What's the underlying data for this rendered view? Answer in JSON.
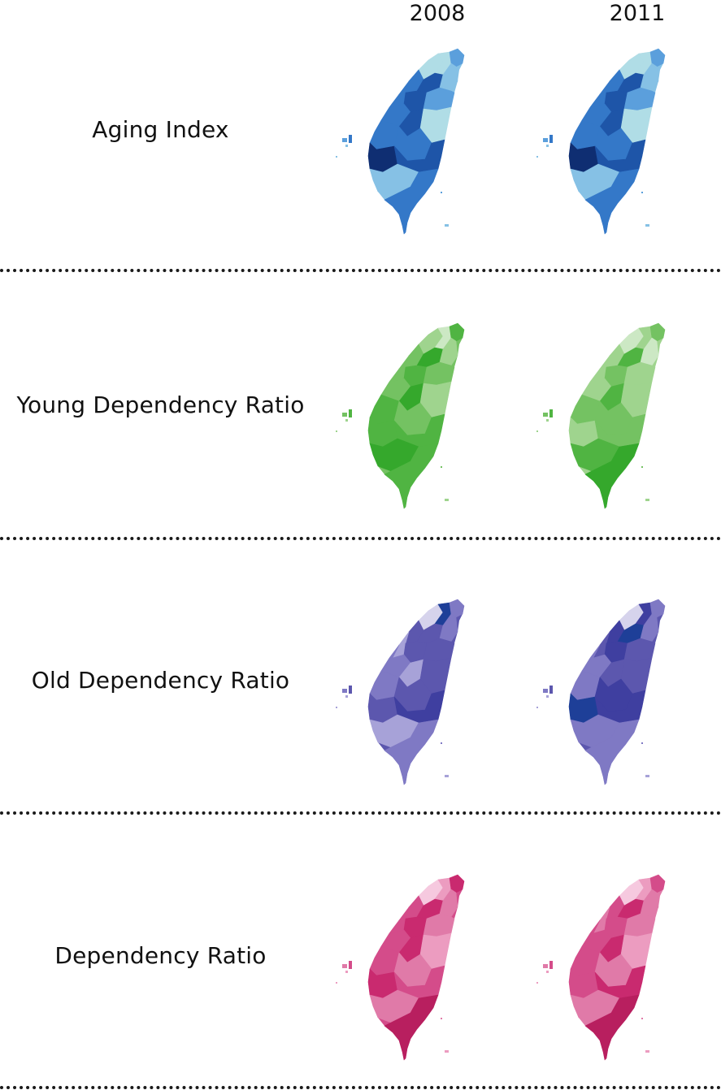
{
  "columns": [
    {
      "year_label": "2008"
    },
    {
      "year_label": "2011"
    }
  ],
  "rows": [
    {
      "label": "Aging Index",
      "palette": [
        "#b0dde6",
        "#86c1e5",
        "#5b9fdc",
        "#3478c8",
        "#1e55a8",
        "#0f2e72"
      ],
      "maps": [
        {
          "base": 1,
          "regions": [
            0,
            0,
            2,
            3,
            4,
            1,
            3,
            4,
            2,
            3,
            4,
            0,
            3,
            3,
            5,
            4,
            1,
            3
          ]
        },
        {
          "base": 1,
          "regions": [
            0,
            0,
            2,
            3,
            4,
            1,
            3,
            4,
            2,
            3,
            4,
            0,
            3,
            3,
            5,
            4,
            1,
            3
          ]
        }
      ]
    },
    {
      "label": "Young Dependency Ratio",
      "palette": [
        "#cce8c4",
        "#9fd48e",
        "#74c262",
        "#50b442",
        "#35a82c",
        "#1f8f1d"
      ],
      "maps": [
        {
          "base": 2,
          "regions": [
            1,
            0,
            3,
            2,
            4,
            1,
            2,
            3,
            2,
            2,
            4,
            1,
            3,
            2,
            3,
            3,
            4,
            3
          ]
        },
        {
          "base": 1,
          "regions": [
            0,
            1,
            2,
            1,
            3,
            0,
            1,
            2,
            1,
            1,
            3,
            1,
            2,
            2,
            1,
            2,
            3,
            4
          ]
        }
      ]
    },
    {
      "label": "Old Dependency Ratio",
      "palette": [
        "#d6d3ec",
        "#a7a2d8",
        "#7f79c4",
        "#5c57ae",
        "#3f3fa0",
        "#1e3f98"
      ],
      "maps": [
        {
          "base": 3,
          "regions": [
            0,
            5,
            2,
            3,
            3,
            2,
            1,
            3,
            3,
            2,
            1,
            3,
            2,
            3,
            3,
            4,
            1,
            2
          ]
        },
        {
          "base": 3,
          "regions": [
            0,
            4,
            2,
            4,
            5,
            2,
            3,
            4,
            3,
            2,
            3,
            3,
            2,
            4,
            5,
            4,
            2,
            2
          ]
        }
      ]
    },
    {
      "label": "Dependency Ratio",
      "palette": [
        "#f6c9df",
        "#ec9cc0",
        "#e07aa8",
        "#d44c8a",
        "#c92a6f",
        "#b81f5f"
      ],
      "maps": [
        {
          "base": 3,
          "regions": [
            0,
            1,
            4,
            3,
            4,
            2,
            3,
            4,
            2,
            3,
            4,
            1,
            3,
            2,
            4,
            3,
            2,
            5
          ]
        },
        {
          "base": 2,
          "regions": [
            0,
            1,
            3,
            3,
            4,
            2,
            2,
            3,
            2,
            3,
            4,
            1,
            3,
            2,
            3,
            4,
            2,
            5
          ]
        }
      ]
    }
  ]
}
